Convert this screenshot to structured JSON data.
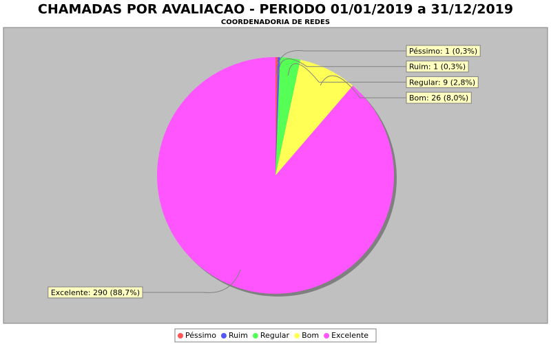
{
  "chart_data": {
    "type": "pie",
    "title": "CHAMADAS POR AVALIACAO - PERIODO 01/01/2019 a 31/12/2019",
    "subtitle": "COORDENADORIA DE REDES",
    "categories": [
      "Péssimo",
      "Ruim",
      "Regular",
      "Bom",
      "Excelente"
    ],
    "values": [
      1,
      1,
      9,
      26,
      290
    ],
    "value_labels": [
      "Péssimo: 1 (0,3%)",
      "Ruim: 1 (0,3%)",
      "Regular: 9 (2,8%)",
      "Bom: 26 (8,0%)",
      "Excelente: 290 (88,7%)"
    ],
    "colors": [
      "#ff5555",
      "#5555ff",
      "#55ff55",
      "#ffff55",
      "#ff55ff"
    ],
    "legend": "bottom"
  }
}
